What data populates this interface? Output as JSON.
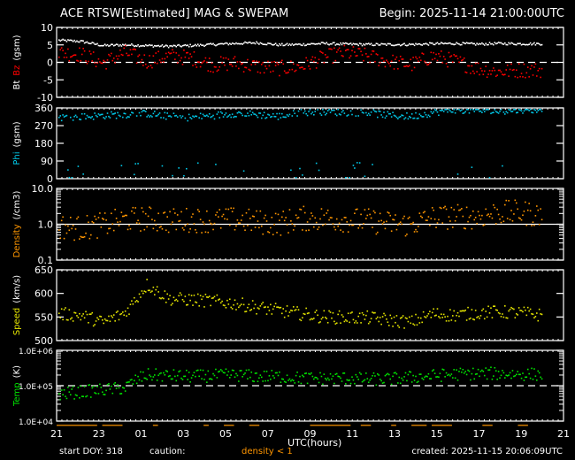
{
  "header": {
    "title": "ACE RTSW[Estimated] MAG & SWEPAM",
    "begin": "Begin: 2025-11-14 21:00:00UTC"
  },
  "footer": {
    "start_doy": "start DOY: 318",
    "caution_label": "caution:",
    "caution_value": "density < 1",
    "created": "created: 2025-11-15 20:06:09UTC",
    "xlabel": "UTC(hours)"
  },
  "colors": {
    "bt": "#ffffff",
    "bz": "#ff0000",
    "phi": "#00c8e8",
    "density": "#ff9600",
    "speed": "#e6e600",
    "temp": "#00e600",
    "axis": "#ffffff",
    "background": "#000000"
  },
  "chart_data": [
    {
      "type": "scatter",
      "title": "Bt Bz (gsm)",
      "ylabel_parts": [
        "Bt",
        "Bz",
        "(gsm)"
      ],
      "yticks": [
        "10",
        "5",
        "0",
        "-5",
        "-10"
      ],
      "ylim": [
        -10,
        10
      ],
      "reference_line": 0,
      "x": [
        "21",
        "23",
        "01",
        "03",
        "05",
        "07",
        "09",
        "11",
        "13",
        "15",
        "17",
        "19",
        "21"
      ],
      "series": [
        {
          "name": "Bt",
          "color": "#ffffff",
          "hourly_mean": [
            6.5,
            6.2,
            5.0,
            5.2,
            5.0,
            4.8,
            5.0,
            5.3,
            5.6,
            5.8,
            5.2,
            5.3,
            5.6,
            5.4,
            5.3,
            5.3,
            5.3,
            5.5,
            5.6,
            5.4,
            5.6,
            5.5,
            5.5
          ]
        },
        {
          "name": "Bz",
          "color": "#ff0000",
          "hourly_mean": [
            3.0,
            2.5,
            0.0,
            3.0,
            0.5,
            2.0,
            1.5,
            -0.5,
            0.0,
            -1.0,
            -1.5,
            -1.0,
            1.5,
            3.0,
            2.0,
            0.5,
            -0.5,
            2.0,
            0.5,
            -1.5,
            -2.5,
            -2.0,
            -2.0
          ]
        }
      ]
    },
    {
      "type": "scatter",
      "title": "Phi (gsm)",
      "ylabel_parts": [
        "Phi",
        "(gsm)"
      ],
      "yticks": [
        "360",
        "270",
        "180",
        "90",
        "0"
      ],
      "ylim": [
        0,
        360
      ],
      "series": [
        {
          "name": "Phi",
          "color": "#00c8e8",
          "hourly_mean": [
            315,
            318,
            325,
            330,
            335,
            320,
            315,
            325,
            335,
            330,
            320,
            340,
            345,
            340,
            340,
            325,
            320,
            340,
            355,
            350,
            345,
            355,
            355
          ]
        }
      ]
    },
    {
      "type": "scatter",
      "title": "Density (/cm3)",
      "ylabel_parts": [
        "Density",
        "(/cm3)"
      ],
      "yticks": [
        "10.0",
        "1.0",
        "0.1"
      ],
      "yscale": "log",
      "ylim": [
        0.1,
        10
      ],
      "reference_line": 1.0,
      "series": [
        {
          "name": "Density",
          "color": "#ff9600",
          "hourly_mean": [
            0.9,
            0.8,
            1.0,
            1.4,
            1.5,
            1.3,
            1.4,
            1.3,
            1.4,
            1.2,
            1.1,
            1.5,
            1.5,
            1.4,
            1.3,
            1.1,
            1.0,
            1.6,
            1.7,
            1.7,
            2.2,
            2.2,
            1.8
          ]
        }
      ]
    },
    {
      "type": "scatter",
      "title": "Speed (km/s)",
      "ylabel_parts": [
        "Speed",
        "(km/s)"
      ],
      "yticks": [
        "650",
        "600",
        "550",
        "500"
      ],
      "ylim": [
        500,
        650
      ],
      "series": [
        {
          "name": "Speed",
          "color": "#e6e600",
          "hourly_mean": [
            558,
            555,
            540,
            560,
            620,
            590,
            588,
            585,
            580,
            572,
            565,
            558,
            552,
            550,
            550,
            545,
            540,
            558,
            555,
            560,
            562,
            560,
            555
          ]
        }
      ]
    },
    {
      "type": "scatter",
      "title": "Temp (K)",
      "ylabel_parts": [
        "Temp",
        "(K)"
      ],
      "yticks": [
        "1.0E+06",
        "1.0E+05",
        "1.0E+04"
      ],
      "yscale": "log",
      "ylim": [
        10000,
        1000000
      ],
      "reference_line": 100000,
      "series": [
        {
          "name": "Temp",
          "color": "#00e600",
          "hourly_mean": [
            60000,
            70000,
            80000,
            90000,
            210000,
            200000,
            190000,
            200000,
            210000,
            190000,
            190000,
            170000,
            170000,
            170000,
            160000,
            160000,
            180000,
            200000,
            220000,
            230000,
            230000,
            220000,
            220000
          ]
        }
      ]
    }
  ],
  "xaxis": {
    "ticks": [
      "21",
      "23",
      "01",
      "03",
      "05",
      "07",
      "09",
      "11",
      "13",
      "15",
      "17",
      "19",
      "21"
    ],
    "label": "UTC(hours)"
  }
}
